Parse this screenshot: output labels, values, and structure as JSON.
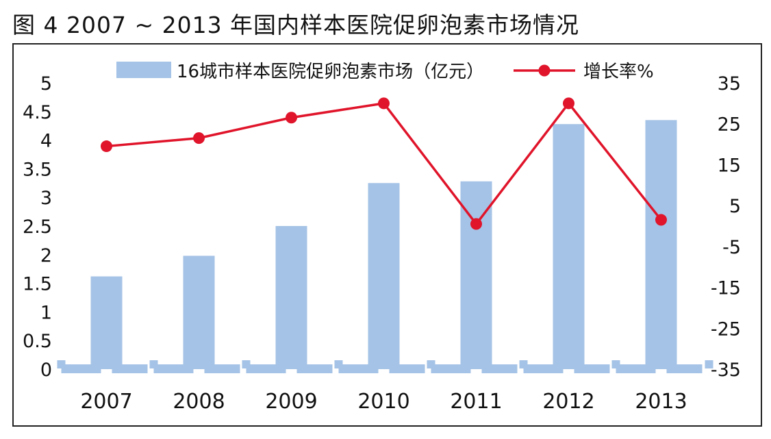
{
  "figure": {
    "title": "图 4  2007 ~ 2013 年国内样本医院促卵泡素市场情况"
  },
  "chart_data": {
    "type": "bar",
    "categories": [
      "2007",
      "2008",
      "2009",
      "2010",
      "2011",
      "2012",
      "2013"
    ],
    "series": [
      {
        "name": "16城市样本医院促卵泡素市场（亿元）",
        "type": "bar",
        "axis": "left",
        "color": "#a5c3e6",
        "values": [
          1.62,
          1.98,
          2.5,
          3.25,
          3.28,
          4.28,
          4.35
        ]
      },
      {
        "name": "增长率%",
        "type": "line",
        "axis": "right",
        "color": "#e0142a",
        "values": [
          19.5,
          21.5,
          26.5,
          30,
          0.5,
          30,
          1.5
        ]
      }
    ],
    "y_left": {
      "min": 0,
      "max": 5,
      "ticks": [
        "0",
        "0.5",
        "1",
        "1.5",
        "2",
        "2.5",
        "3",
        "3.5",
        "4",
        "4.5",
        "5"
      ]
    },
    "y_right": {
      "min": -35,
      "max": 35,
      "ticks": [
        "-35",
        "-25",
        "-15",
        "-5",
        "5",
        "15",
        "25",
        "35"
      ]
    },
    "grid": false,
    "legend_position": "top"
  }
}
